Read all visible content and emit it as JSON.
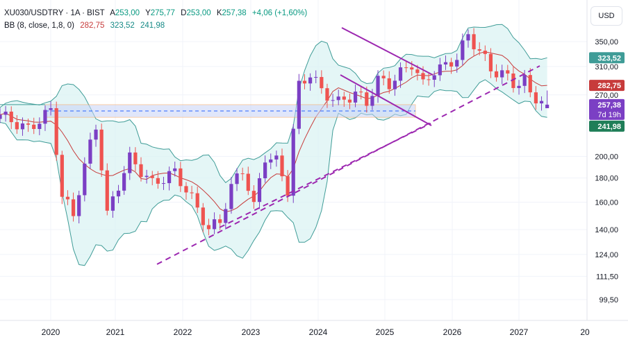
{
  "legend": {
    "symbol": "XU030/USDTRY · 1A · BIST",
    "open_label": "A",
    "open": "253,00",
    "high_label": "Y",
    "high": "275,77",
    "low_label": "D",
    "low": "253,00",
    "close_label": "K",
    "close": "257,38",
    "change": "+4,06 (+1,60%)",
    "indicator": "BB (8, close, 1,8, 0)",
    "bb_middle": "282,75",
    "bb_upper": "323,52",
    "bb_lower": "241,98"
  },
  "currency_button": "USD",
  "colors": {
    "up": "#7b3fc4",
    "down": "#ef5350",
    "bb_middle": "#c73b3b",
    "bb_band": "#3f9c97",
    "bb_fill": "#d9f2f2",
    "trendline": "#9c27b0",
    "zone_fill": "#c7d3f7",
    "zone_border": "#f7a35c",
    "grid": "#f0f3fa"
  },
  "chart_data": {
    "type": "candlestick",
    "scale": "log",
    "timeframe": "1A",
    "x_tick_labels": [
      "2020",
      "2021",
      "2022",
      "2023",
      "2024",
      "2025",
      "2026",
      "2027",
      "20"
    ],
    "y_tick_labels": [
      "99,50",
      "111,50",
      "124,00",
      "140,00",
      "160,00",
      "180,00",
      "200,00",
      "270,00",
      "310,00",
      "350,00"
    ],
    "price_badges": [
      {
        "value": "323,52",
        "series": "bb_upper"
      },
      {
        "value": "282,75",
        "series": "bb_middle"
      },
      {
        "value": "257,38",
        "series": "close",
        "countdown": "7d 19h"
      },
      {
        "value": "241,98",
        "series": "bb_lower"
      }
    ],
    "last_candle": {
      "open": 253.0,
      "high": 275.77,
      "low": 253.0,
      "close": 257.38
    }
  }
}
